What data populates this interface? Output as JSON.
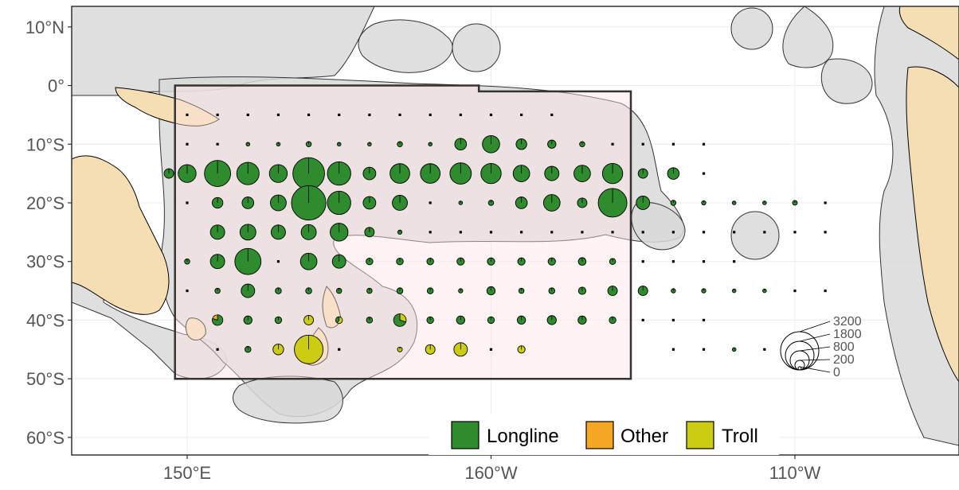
{
  "axes": {
    "y_ticks": [
      {
        "label": "10°N",
        "lat": 10
      },
      {
        "label": "0°",
        "lat": 0
      },
      {
        "label": "10°S",
        "lat": -10
      },
      {
        "label": "20°S",
        "lat": -20
      },
      {
        "label": "30°S",
        "lat": -30
      },
      {
        "label": "40°S",
        "lat": -40
      },
      {
        "label": "50°S",
        "lat": -50
      },
      {
        "label": "60°S",
        "lat": -60
      }
    ],
    "x_ticks": [
      {
        "label": "150°E",
        "lon": 150
      },
      {
        "label": "160°W",
        "lon": 200
      },
      {
        "label": "110°W",
        "lon": 250
      }
    ],
    "lon_range": [
      131,
      277
    ],
    "lat_range": [
      -63,
      13.5
    ]
  },
  "legend": {
    "gear": [
      {
        "label": "Longline",
        "color": "#2e8b2e"
      },
      {
        "label": "Other",
        "color": "#f5a623"
      },
      {
        "label": "Troll",
        "color": "#cccc11"
      }
    ],
    "size_scale": [
      "3200",
      "1800",
      "800",
      "200",
      "0"
    ]
  },
  "chart_data": {
    "type": "map-pie",
    "x_unit": "longitude (degrees east)",
    "y_unit": "latitude",
    "colors": {
      "Longline": "#2e8b2e",
      "Other": "#f5a623",
      "Troll": "#cccc11"
    },
    "size_scale": [
      3200,
      1800,
      800,
      200,
      0
    ],
    "study_area": [
      [
        148,
        0
      ],
      [
        198,
        0
      ],
      [
        198,
        -1
      ],
      [
        223,
        -1
      ],
      [
        223,
        -50
      ],
      [
        148,
        -50
      ]
    ],
    "points": [
      {
        "lon": 150,
        "lat": -5,
        "v": 10,
        "g": "L"
      },
      {
        "lon": 155,
        "lat": -5,
        "v": 10,
        "g": "L"
      },
      {
        "lon": 160,
        "lat": -5,
        "v": 5,
        "g": "L"
      },
      {
        "lon": 165,
        "lat": -5,
        "v": 5,
        "g": "L"
      },
      {
        "lon": 170,
        "lat": -5,
        "v": 5,
        "g": "L"
      },
      {
        "lon": 175,
        "lat": -5,
        "v": 15,
        "g": "L"
      },
      {
        "lon": 180,
        "lat": -5,
        "v": 15,
        "g": "L"
      },
      {
        "lon": 185,
        "lat": -5,
        "v": 5,
        "g": "L"
      },
      {
        "lon": 190,
        "lat": -5,
        "v": 5,
        "g": "L"
      },
      {
        "lon": 195,
        "lat": -5,
        "v": 5,
        "g": "L"
      },
      {
        "lon": 200,
        "lat": -5,
        "v": 1,
        "g": "L"
      },
      {
        "lon": 205,
        "lat": -5,
        "v": 1,
        "g": "L"
      },
      {
        "lon": 210,
        "lat": -5,
        "v": 1,
        "g": "L"
      },
      {
        "lon": 150,
        "lat": -10,
        "v": 5,
        "g": "L"
      },
      {
        "lon": 155,
        "lat": -10,
        "v": 20,
        "g": "L"
      },
      {
        "lon": 160,
        "lat": -10,
        "v": 30,
        "g": "L"
      },
      {
        "lon": 165,
        "lat": -10,
        "v": 30,
        "g": "L"
      },
      {
        "lon": 170,
        "lat": -10,
        "v": 60,
        "g": "L"
      },
      {
        "lon": 175,
        "lat": -10,
        "v": 30,
        "g": "L"
      },
      {
        "lon": 180,
        "lat": -10,
        "v": 30,
        "g": "L"
      },
      {
        "lon": 185,
        "lat": -10,
        "v": 60,
        "g": "L"
      },
      {
        "lon": 190,
        "lat": -10,
        "v": 30,
        "g": "L"
      },
      {
        "lon": 195,
        "lat": -10,
        "v": 300,
        "g": "L"
      },
      {
        "lon": 200,
        "lat": -10,
        "v": 650,
        "g": "L"
      },
      {
        "lon": 205,
        "lat": -10,
        "v": 250,
        "g": "L"
      },
      {
        "lon": 210,
        "lat": -10,
        "v": 150,
        "g": "L"
      },
      {
        "lon": 215,
        "lat": -10,
        "v": 60,
        "g": "L"
      },
      {
        "lon": 220,
        "lat": -10,
        "v": 15,
        "g": "L"
      },
      {
        "lon": 225,
        "lat": -10,
        "v": 5,
        "g": "L"
      },
      {
        "lon": 230,
        "lat": -10,
        "v": 3,
        "g": "L"
      },
      {
        "lon": 235,
        "lat": -10,
        "v": 1,
        "g": "L"
      },
      {
        "lon": 147,
        "lat": -15,
        "v": 200,
        "g": "L"
      },
      {
        "lon": 150,
        "lat": -15,
        "v": 700,
        "g": "L"
      },
      {
        "lon": 155,
        "lat": -15,
        "v": 1500,
        "g": "L"
      },
      {
        "lon": 160,
        "lat": -15,
        "v": 1100,
        "g": "L"
      },
      {
        "lon": 165,
        "lat": -15,
        "v": 700,
        "g": "L"
      },
      {
        "lon": 170,
        "lat": -15,
        "v": 2200,
        "g": "L"
      },
      {
        "lon": 175,
        "lat": -15,
        "v": 1200,
        "g": "L"
      },
      {
        "lon": 180,
        "lat": -15,
        "v": 350,
        "g": "L"
      },
      {
        "lon": 185,
        "lat": -15,
        "v": 850,
        "g": "L"
      },
      {
        "lon": 190,
        "lat": -15,
        "v": 850,
        "g": "L"
      },
      {
        "lon": 195,
        "lat": -15,
        "v": 1000,
        "g": "L"
      },
      {
        "lon": 200,
        "lat": -15,
        "v": 900,
        "g": "L"
      },
      {
        "lon": 205,
        "lat": -15,
        "v": 600,
        "g": "L"
      },
      {
        "lon": 210,
        "lat": -15,
        "v": 450,
        "g": "L"
      },
      {
        "lon": 215,
        "lat": -15,
        "v": 600,
        "g": "L"
      },
      {
        "lon": 220,
        "lat": -15,
        "v": 900,
        "g": "L"
      },
      {
        "lon": 225,
        "lat": -15,
        "v": 200,
        "g": "L"
      },
      {
        "lon": 230,
        "lat": -15,
        "v": 300,
        "g": "L"
      },
      {
        "lon": 235,
        "lat": -15,
        "v": 1,
        "g": "L"
      },
      {
        "lon": 150,
        "lat": -20,
        "v": 20,
        "g": "L"
      },
      {
        "lon": 155,
        "lat": -20,
        "v": 250,
        "g": "L"
      },
      {
        "lon": 160,
        "lat": -20,
        "v": 300,
        "g": "L"
      },
      {
        "lon": 165,
        "lat": -20,
        "v": 550,
        "g": "L"
      },
      {
        "lon": 170,
        "lat": -20,
        "v": 2600,
        "g": "L"
      },
      {
        "lon": 175,
        "lat": -20,
        "v": 1200,
        "g": "L"
      },
      {
        "lon": 180,
        "lat": -20,
        "v": 350,
        "g": "L"
      },
      {
        "lon": 185,
        "lat": -20,
        "v": 500,
        "g": "L"
      },
      {
        "lon": 190,
        "lat": -20,
        "v": 15,
        "g": "L"
      },
      {
        "lon": 195,
        "lat": -20,
        "v": 30,
        "g": "L"
      },
      {
        "lon": 200,
        "lat": -20,
        "v": 60,
        "g": "L"
      },
      {
        "lon": 205,
        "lat": -20,
        "v": 300,
        "g": "L"
      },
      {
        "lon": 210,
        "lat": -20,
        "v": 600,
        "g": "L"
      },
      {
        "lon": 215,
        "lat": -20,
        "v": 200,
        "g": "L"
      },
      {
        "lon": 220,
        "lat": -20,
        "v": 1800,
        "g": "L"
      },
      {
        "lon": 225,
        "lat": -20,
        "v": 400,
        "g": "L"
      },
      {
        "lon": 230,
        "lat": -20,
        "v": 60,
        "g": "L"
      },
      {
        "lon": 235,
        "lat": -20,
        "v": 40,
        "g": "L"
      },
      {
        "lon": 240,
        "lat": -20,
        "v": 30,
        "g": "L"
      },
      {
        "lon": 245,
        "lat": -20,
        "v": 30,
        "g": "L"
      },
      {
        "lon": 250,
        "lat": -20,
        "v": 50,
        "g": "L"
      },
      {
        "lon": 255,
        "lat": -20,
        "v": 3,
        "g": "L"
      },
      {
        "lon": 155,
        "lat": -25,
        "v": 450,
        "g": "L"
      },
      {
        "lon": 160,
        "lat": -25,
        "v": 550,
        "g": "L"
      },
      {
        "lon": 165,
        "lat": -25,
        "v": 450,
        "g": "L"
      },
      {
        "lon": 170,
        "lat": -25,
        "v": 500,
        "g": "L"
      },
      {
        "lon": 175,
        "lat": -25,
        "v": 700,
        "g": "L"
      },
      {
        "lon": 180,
        "lat": -25,
        "v": 200,
        "g": "L"
      },
      {
        "lon": 185,
        "lat": -25,
        "v": 40,
        "g": "L"
      },
      {
        "lon": 190,
        "lat": -25,
        "v": 15,
        "g": "L"
      },
      {
        "lon": 195,
        "lat": -25,
        "v": 15,
        "g": "L"
      },
      {
        "lon": 200,
        "lat": -25,
        "v": 10,
        "g": "L"
      },
      {
        "lon": 205,
        "lat": -25,
        "v": 10,
        "g": "L"
      },
      {
        "lon": 210,
        "lat": -25,
        "v": 10,
        "g": "L"
      },
      {
        "lon": 215,
        "lat": -25,
        "v": 10,
        "g": "L"
      },
      {
        "lon": 220,
        "lat": -25,
        "v": 10,
        "g": "L"
      },
      {
        "lon": 225,
        "lat": -25,
        "v": 10,
        "g": "L"
      },
      {
        "lon": 230,
        "lat": -25,
        "v": 3,
        "g": "L"
      },
      {
        "lon": 235,
        "lat": -25,
        "v": 3,
        "g": "L"
      },
      {
        "lon": 240,
        "lat": -25,
        "v": 3,
        "g": "L"
      },
      {
        "lon": 245,
        "lat": -25,
        "v": 10,
        "g": "L"
      },
      {
        "lon": 250,
        "lat": -25,
        "v": 10,
        "g": "L"
      },
      {
        "lon": 255,
        "lat": -25,
        "v": 3,
        "g": "L"
      },
      {
        "lon": 150,
        "lat": -30,
        "v": 60,
        "g": "L"
      },
      {
        "lon": 155,
        "lat": -30,
        "v": 450,
        "g": "L"
      },
      {
        "lon": 160,
        "lat": -30,
        "v": 1500,
        "g": "L"
      },
      {
        "lon": 165,
        "lat": -30,
        "v": 5,
        "g": "L"
      },
      {
        "lon": 170,
        "lat": -30,
        "v": 600,
        "g": "L"
      },
      {
        "lon": 175,
        "lat": -30,
        "v": 400,
        "g": "L"
      },
      {
        "lon": 180,
        "lat": -30,
        "v": 100,
        "g": "L"
      },
      {
        "lon": 185,
        "lat": -30,
        "v": 100,
        "g": "L"
      },
      {
        "lon": 190,
        "lat": -30,
        "v": 100,
        "g": "L"
      },
      {
        "lon": 195,
        "lat": -30,
        "v": 120,
        "g": "L"
      },
      {
        "lon": 200,
        "lat": -30,
        "v": 120,
        "g": "L"
      },
      {
        "lon": 205,
        "lat": -30,
        "v": 120,
        "g": "L"
      },
      {
        "lon": 210,
        "lat": -30,
        "v": 120,
        "g": "L"
      },
      {
        "lon": 215,
        "lat": -30,
        "v": 130,
        "g": "L"
      },
      {
        "lon": 220,
        "lat": -30,
        "v": 80,
        "g": "L"
      },
      {
        "lon": 225,
        "lat": -30,
        "v": 10,
        "g": "L"
      },
      {
        "lon": 230,
        "lat": -30,
        "v": 3,
        "g": "L"
      },
      {
        "lon": 235,
        "lat": -30,
        "v": 3,
        "g": "L"
      },
      {
        "lon": 240,
        "lat": -30,
        "v": 5,
        "g": "L"
      },
      {
        "lon": 150,
        "lat": -35,
        "v": 20,
        "g": "L"
      },
      {
        "lon": 155,
        "lat": -35,
        "v": 60,
        "g": "L"
      },
      {
        "lon": 160,
        "lat": -35,
        "v": 400,
        "g": "L"
      },
      {
        "lon": 165,
        "lat": -35,
        "v": 80,
        "g": "L"
      },
      {
        "lon": 170,
        "lat": -35,
        "v": 80,
        "g": "L"
      },
      {
        "lon": 175,
        "lat": -35,
        "v": 60,
        "g": "L"
      },
      {
        "lon": 180,
        "lat": -35,
        "v": 60,
        "g": "L"
      },
      {
        "lon": 185,
        "lat": -35,
        "v": 80,
        "g": "L"
      },
      {
        "lon": 190,
        "lat": -35,
        "v": 80,
        "g": "L"
      },
      {
        "lon": 195,
        "lat": -35,
        "v": 40,
        "g": "L"
      },
      {
        "lon": 200,
        "lat": -35,
        "v": 150,
        "g": "L"
      },
      {
        "lon": 205,
        "lat": -35,
        "v": 60,
        "g": "L"
      },
      {
        "lon": 210,
        "lat": -35,
        "v": 80,
        "g": "L"
      },
      {
        "lon": 215,
        "lat": -35,
        "v": 120,
        "g": "L"
      },
      {
        "lon": 220,
        "lat": -35,
        "v": 200,
        "g": "L"
      },
      {
        "lon": 225,
        "lat": -35,
        "v": 200,
        "g": "L"
      },
      {
        "lon": 230,
        "lat": -35,
        "v": 40,
        "g": "L"
      },
      {
        "lon": 235,
        "lat": -35,
        "v": 40,
        "g": "L"
      },
      {
        "lon": 240,
        "lat": -35,
        "v": 30,
        "g": "L"
      },
      {
        "lon": 245,
        "lat": -35,
        "v": 30,
        "g": "L"
      },
      {
        "lon": 250,
        "lat": -35,
        "v": 15,
        "g": "L"
      },
      {
        "lon": 255,
        "lat": -35,
        "v": 5,
        "g": "L"
      },
      {
        "lon": 155,
        "lat": -40,
        "v": 250,
        "g": "M",
        "o": 0.2
      },
      {
        "lon": 160,
        "lat": -40,
        "v": 150,
        "g": "L"
      },
      {
        "lon": 165,
        "lat": -40,
        "v": 100,
        "g": "L"
      },
      {
        "lon": 170,
        "lat": -40,
        "v": 200,
        "g": "T"
      },
      {
        "lon": 175,
        "lat": -40,
        "v": 100,
        "g": "LT",
        "t": 0.6
      },
      {
        "lon": 180,
        "lat": -40,
        "v": 80,
        "g": "L"
      },
      {
        "lon": 185,
        "lat": -40,
        "v": 350,
        "g": "LT",
        "t": 0.3
      },
      {
        "lon": 190,
        "lat": -40,
        "v": 100,
        "g": "L"
      },
      {
        "lon": 195,
        "lat": -40,
        "v": 150,
        "g": "L"
      },
      {
        "lon": 200,
        "lat": -40,
        "v": 100,
        "g": "L"
      },
      {
        "lon": 205,
        "lat": -40,
        "v": 150,
        "g": "L"
      },
      {
        "lon": 210,
        "lat": -40,
        "v": 180,
        "g": "L"
      },
      {
        "lon": 215,
        "lat": -40,
        "v": 150,
        "g": "L"
      },
      {
        "lon": 220,
        "lat": -40,
        "v": 100,
        "g": "L"
      },
      {
        "lon": 225,
        "lat": -40,
        "v": 3,
        "g": "L"
      },
      {
        "lon": 230,
        "lat": -40,
        "v": 3,
        "g": "L"
      },
      {
        "lon": 235,
        "lat": -40,
        "v": 3,
        "g": "L"
      },
      {
        "lon": 155,
        "lat": -45,
        "v": 10,
        "g": "L"
      },
      {
        "lon": 160,
        "lat": -45,
        "v": 80,
        "g": "L"
      },
      {
        "lon": 165,
        "lat": -45,
        "v": 250,
        "g": "T"
      },
      {
        "lon": 170,
        "lat": -45,
        "v": 1800,
        "g": "T"
      },
      {
        "lon": 175,
        "lat": -45,
        "v": 10,
        "g": "T"
      },
      {
        "lon": 185,
        "lat": -45,
        "v": 50,
        "g": "T"
      },
      {
        "lon": 190,
        "lat": -45,
        "v": 200,
        "g": "T"
      },
      {
        "lon": 195,
        "lat": -45,
        "v": 400,
        "g": "T"
      },
      {
        "lon": 200,
        "lat": -45,
        "v": 5,
        "g": "T"
      },
      {
        "lon": 205,
        "lat": -45,
        "v": 120,
        "g": "T"
      },
      {
        "lon": 230,
        "lat": -45,
        "v": 3,
        "g": "L"
      },
      {
        "lon": 235,
        "lat": -45,
        "v": 3,
        "g": "L"
      },
      {
        "lon": 240,
        "lat": -45,
        "v": 30,
        "g": "L"
      },
      {
        "lon": 245,
        "lat": -45,
        "v": 5,
        "g": "L"
      }
    ]
  }
}
